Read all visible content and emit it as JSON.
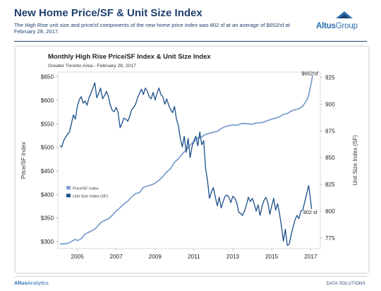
{
  "header": {
    "title": "New Home Price/SF & Unit Size Index",
    "subtitle": "The High Rise unit size and price/sf components of the new home price index was 802 sf at an average of $652/sf  at February 28, 2017.",
    "logo_text_bold": "Altus",
    "logo_text_light": "Group"
  },
  "footer": {
    "left_bold": "Altus",
    "left_light": "Analytics",
    "right": "DATA SOLUTIONS"
  },
  "colors": {
    "navy": "#1f3f6e",
    "price_series": "#7ea0cf",
    "size_series": "#1b4f8a",
    "brand_blue": "#2a6db0"
  },
  "chart_data": {
    "type": "line",
    "title": "Monthly High Rise Price/SF Index & Unit Size Index",
    "subtitle": "Greater Toronto Area - February 28, 2017",
    "ylabel_left": "Price/SF Index",
    "ylabel_right": "Unit Size Index (SF)",
    "xlim": [
      2004.0,
      2017.5
    ],
    "x_ticks": [
      2005,
      2007,
      2009,
      2011,
      2013,
      2015,
      2017
    ],
    "x_tick_labels": [
      "2005",
      "2007",
      "2009",
      "2011",
      "2013",
      "2015",
      "2017"
    ],
    "y_left_lim": [
      285,
      660
    ],
    "y_left_ticks": [
      300,
      350,
      400,
      450,
      500,
      550,
      600,
      650
    ],
    "y_left_tick_labels": [
      "$300",
      "$350",
      "$400",
      "$450",
      "$500",
      "$550",
      "$600",
      "$650"
    ],
    "y_right_lim": [
      765,
      930
    ],
    "y_right_ticks": [
      775,
      800,
      825,
      850,
      875,
      900,
      925
    ],
    "y_right_tick_labels": [
      "775",
      "800",
      "825",
      "850",
      "875",
      "900",
      "925"
    ],
    "legend_position": "left-middle",
    "annotations": [
      {
        "text": "$652/sf",
        "series": "Price/SF Index"
      },
      {
        "text": "802 sf",
        "series": "Unit Size Index (SF)"
      }
    ],
    "series": [
      {
        "name": "Price/SF Index",
        "axis": "left",
        "color": "#7ea0cf",
        "points": [
          [
            2004.1,
            295
          ],
          [
            2004.3,
            295
          ],
          [
            2004.5,
            296
          ],
          [
            2004.7,
            300
          ],
          [
            2004.9,
            305
          ],
          [
            2005.0,
            302
          ],
          [
            2005.2,
            306
          ],
          [
            2005.4,
            316
          ],
          [
            2005.6,
            320
          ],
          [
            2005.8,
            324
          ],
          [
            2006.0,
            330
          ],
          [
            2006.2,
            340
          ],
          [
            2006.4,
            345
          ],
          [
            2006.6,
            348
          ],
          [
            2006.8,
            356
          ],
          [
            2007.0,
            365
          ],
          [
            2007.2,
            372
          ],
          [
            2007.4,
            380
          ],
          [
            2007.6,
            386
          ],
          [
            2007.8,
            395
          ],
          [
            2008.0,
            402
          ],
          [
            2008.2,
            404
          ],
          [
            2008.4,
            415
          ],
          [
            2008.6,
            418
          ],
          [
            2008.8,
            420
          ],
          [
            2009.0,
            424
          ],
          [
            2009.2,
            430
          ],
          [
            2009.4,
            438
          ],
          [
            2009.6,
            448
          ],
          [
            2009.8,
            455
          ],
          [
            2010.0,
            468
          ],
          [
            2010.2,
            476
          ],
          [
            2010.4,
            486
          ],
          [
            2010.6,
            495
          ],
          [
            2010.8,
            505
          ],
          [
            2011.0,
            512
          ],
          [
            2011.2,
            520
          ],
          [
            2011.4,
            522
          ],
          [
            2011.6,
            528
          ],
          [
            2011.8,
            530
          ],
          [
            2012.0,
            532
          ],
          [
            2012.2,
            534
          ],
          [
            2012.4,
            540
          ],
          [
            2012.6,
            544
          ],
          [
            2012.8,
            546
          ],
          [
            2013.0,
            548
          ],
          [
            2013.2,
            547
          ],
          [
            2013.4,
            550
          ],
          [
            2013.6,
            551
          ],
          [
            2013.8,
            550
          ],
          [
            2014.0,
            549
          ],
          [
            2014.2,
            552
          ],
          [
            2014.4,
            552
          ],
          [
            2014.6,
            554
          ],
          [
            2014.8,
            557
          ],
          [
            2015.0,
            560
          ],
          [
            2015.2,
            562
          ],
          [
            2015.4,
            565
          ],
          [
            2015.6,
            570
          ],
          [
            2015.8,
            572
          ],
          [
            2016.0,
            577
          ],
          [
            2016.2,
            580
          ],
          [
            2016.4,
            582
          ],
          [
            2016.6,
            588
          ],
          [
            2016.7,
            594
          ],
          [
            2016.8,
            600
          ],
          [
            2016.9,
            611
          ],
          [
            2017.0,
            630
          ],
          [
            2017.1,
            652
          ]
        ]
      },
      {
        "name": "Unit Size Index (SF)",
        "axis": "right",
        "color": "#1b4f8a",
        "points": [
          [
            2004.1,
            861
          ],
          [
            2004.2,
            860
          ],
          [
            2004.3,
            866
          ],
          [
            2004.4,
            869
          ],
          [
            2004.5,
            872
          ],
          [
            2004.6,
            874
          ],
          [
            2004.7,
            882
          ],
          [
            2004.8,
            890
          ],
          [
            2004.9,
            886
          ],
          [
            2005.0,
            898
          ],
          [
            2005.1,
            904
          ],
          [
            2005.2,
            907
          ],
          [
            2005.3,
            901
          ],
          [
            2005.4,
            903
          ],
          [
            2005.5,
            899
          ],
          [
            2005.6,
            906
          ],
          [
            2005.7,
            910
          ],
          [
            2005.8,
            915
          ],
          [
            2005.9,
            920
          ],
          [
            2006.0,
            906
          ],
          [
            2006.1,
            910
          ],
          [
            2006.2,
            915
          ],
          [
            2006.3,
            905
          ],
          [
            2006.4,
            908
          ],
          [
            2006.5,
            912
          ],
          [
            2006.6,
            907
          ],
          [
            2006.7,
            899
          ],
          [
            2006.8,
            894
          ],
          [
            2006.9,
            893
          ],
          [
            2007.0,
            897
          ],
          [
            2007.1,
            892
          ],
          [
            2007.2,
            878
          ],
          [
            2007.3,
            882
          ],
          [
            2007.4,
            887
          ],
          [
            2007.5,
            886
          ],
          [
            2007.6,
            884
          ],
          [
            2007.7,
            889
          ],
          [
            2007.8,
            895
          ],
          [
            2007.9,
            897
          ],
          [
            2008.0,
            900
          ],
          [
            2008.1,
            906
          ],
          [
            2008.2,
            910
          ],
          [
            2008.3,
            914
          ],
          [
            2008.4,
            909
          ],
          [
            2008.5,
            915
          ],
          [
            2008.6,
            912
          ],
          [
            2008.7,
            907
          ],
          [
            2008.8,
            905
          ],
          [
            2008.9,
            911
          ],
          [
            2009.0,
            904
          ],
          [
            2009.1,
            910
          ],
          [
            2009.2,
            915
          ],
          [
            2009.3,
            909
          ],
          [
            2009.4,
            907
          ],
          [
            2009.5,
            900
          ],
          [
            2009.6,
            905
          ],
          [
            2009.7,
            899
          ],
          [
            2009.8,
            895
          ],
          [
            2009.9,
            892
          ],
          [
            2010.0,
            898
          ],
          [
            2010.1,
            886
          ],
          [
            2010.2,
            880
          ],
          [
            2010.3,
            868
          ],
          [
            2010.4,
            860
          ],
          [
            2010.5,
            870
          ],
          [
            2010.6,
            855
          ],
          [
            2010.7,
            868
          ],
          [
            2010.8,
            850
          ],
          [
            2010.9,
            860
          ],
          [
            2011.0,
            866
          ],
          [
            2011.1,
            870
          ],
          [
            2011.2,
            861
          ],
          [
            2011.3,
            874
          ],
          [
            2011.4,
            862
          ],
          [
            2011.5,
            866
          ],
          [
            2011.6,
            840
          ],
          [
            2011.7,
            828
          ],
          [
            2011.8,
            812
          ],
          [
            2011.9,
            818
          ],
          [
            2012.0,
            822
          ],
          [
            2012.1,
            813
          ],
          [
            2012.2,
            805
          ],
          [
            2012.3,
            813
          ],
          [
            2012.4,
            803
          ],
          [
            2012.5,
            809
          ],
          [
            2012.6,
            814
          ],
          [
            2012.7,
            815
          ],
          [
            2012.8,
            813
          ],
          [
            2012.9,
            808
          ],
          [
            2013.0,
            814
          ],
          [
            2013.1,
            812
          ],
          [
            2013.2,
            808
          ],
          [
            2013.3,
            799
          ],
          [
            2013.4,
            798
          ],
          [
            2013.5,
            796
          ],
          [
            2013.6,
            800
          ],
          [
            2013.7,
            806
          ],
          [
            2013.8,
            813
          ],
          [
            2013.9,
            809
          ],
          [
            2014.0,
            812
          ],
          [
            2014.1,
            807
          ],
          [
            2014.2,
            800
          ],
          [
            2014.3,
            806
          ],
          [
            2014.4,
            796
          ],
          [
            2014.5,
            804
          ],
          [
            2014.6,
            810
          ],
          [
            2014.7,
            813
          ],
          [
            2014.8,
            808
          ],
          [
            2014.9,
            797
          ],
          [
            2015.0,
            805
          ],
          [
            2015.1,
            812
          ],
          [
            2015.2,
            801
          ],
          [
            2015.3,
            807
          ],
          [
            2015.4,
            798
          ],
          [
            2015.5,
            786
          ],
          [
            2015.6,
            772
          ],
          [
            2015.7,
            783
          ],
          [
            2015.8,
            768
          ],
          [
            2015.9,
            769
          ],
          [
            2016.0,
            778
          ],
          [
            2016.1,
            785
          ],
          [
            2016.2,
            792
          ],
          [
            2016.3,
            796
          ],
          [
            2016.4,
            793
          ],
          [
            2016.5,
            800
          ],
          [
            2016.6,
            801
          ],
          [
            2016.7,
            809
          ],
          [
            2016.8,
            816
          ],
          [
            2016.9,
            824
          ],
          [
            2017.0,
            810
          ],
          [
            2017.05,
            802
          ]
        ]
      }
    ]
  }
}
